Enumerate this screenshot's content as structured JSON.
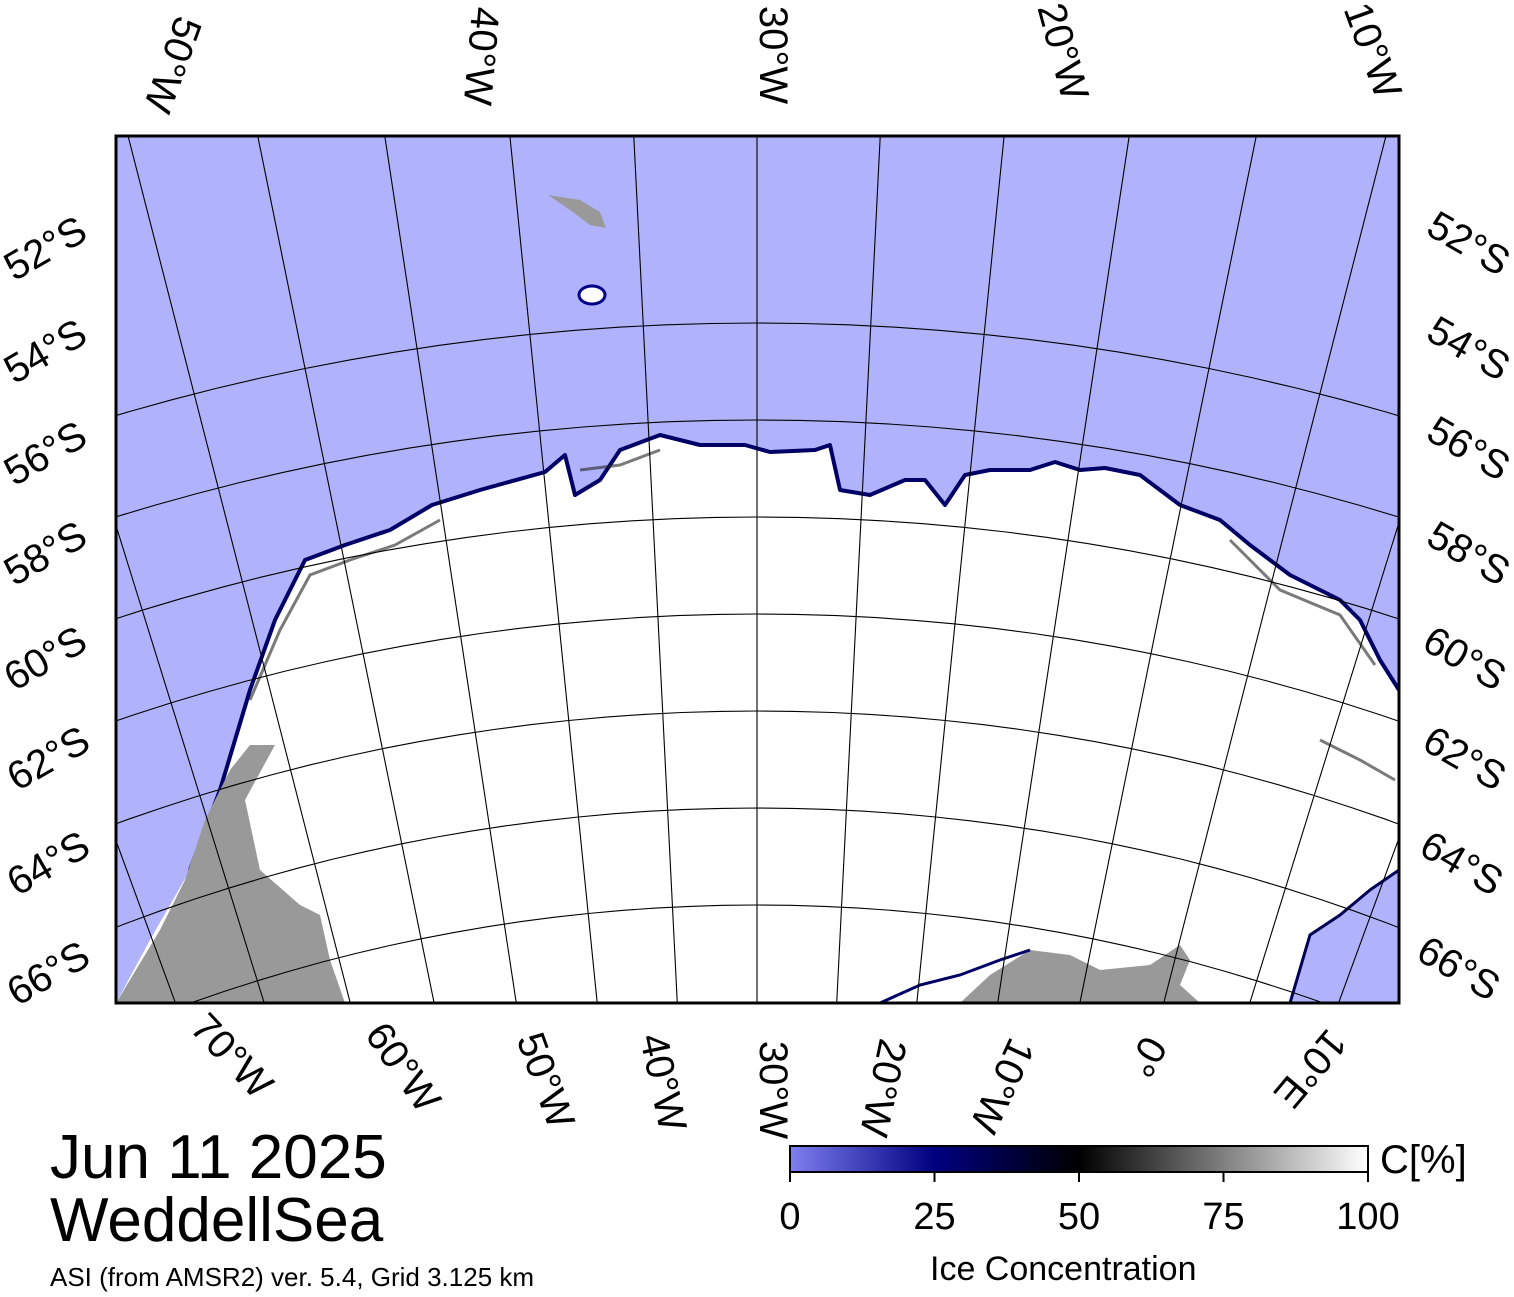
{
  "header": {
    "date": "Jun 11 2025",
    "region": "WeddellSea",
    "source": "ASI (from AMSR2) ver. 5.4,  Grid 3.125 km"
  },
  "map": {
    "top_lon_labels": [
      "50°W",
      "40°W",
      "30°W",
      "20°W",
      "10°W"
    ],
    "bottom_lon_labels": [
      "70°W",
      "60°W",
      "50°W",
      "40°W",
      "30°W",
      "20°W",
      "10°W",
      "0°",
      "10°E"
    ],
    "left_lat_labels": [
      "52°S",
      "54°S",
      "56°S",
      "58°S",
      "60°S",
      "62°S",
      "64°S",
      "66°S"
    ],
    "right_lat_labels": [
      "52°S",
      "54°S",
      "56°S",
      "58°S",
      "60°S",
      "62°S",
      "64°S",
      "66°S"
    ],
    "colors": {
      "open_water": "#b0b3fb",
      "ice": "#ffffff",
      "land": "#999999",
      "ice_edge": "#000088"
    }
  },
  "colorbar": {
    "title": "Ice Concentration",
    "unit": "C[%]",
    "ticks": [
      "0",
      "25",
      "50",
      "75",
      "100"
    ],
    "range": [
      0,
      100
    ],
    "stops": [
      {
        "value": 0,
        "color": "#7f7ff0"
      },
      {
        "value": 25,
        "color": "#000080"
      },
      {
        "value": 50,
        "color": "#000000"
      },
      {
        "value": 100,
        "color": "#ffffff"
      }
    ]
  }
}
